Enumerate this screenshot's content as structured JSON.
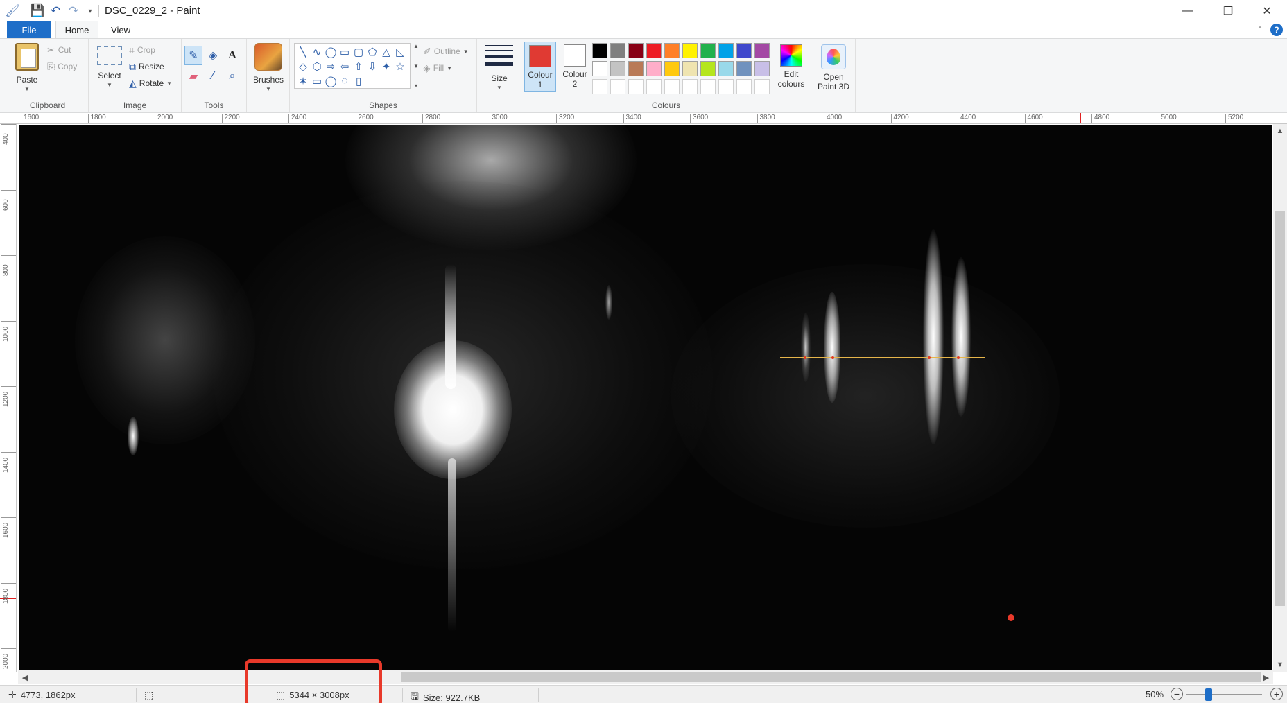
{
  "window": {
    "title": "DSC_0229_2 - Paint",
    "minimize_glyph": "—",
    "restore_glyph": "❐",
    "close_glyph": "✕"
  },
  "quick_access": {
    "app_icon": "paint-app-icon",
    "save_icon": "save-icon",
    "undo_icon": "undo-icon",
    "redo_icon": "redo-icon",
    "customize_icon": "customize-caret-icon"
  },
  "menu_tabs": {
    "file": "File",
    "home": "Home",
    "view": "View"
  },
  "ribbon": {
    "clipboard": {
      "label": "Clipboard",
      "paste": "Paste",
      "cut": "Cut",
      "copy": "Copy"
    },
    "image": {
      "label": "Image",
      "select": "Select",
      "crop": "Crop",
      "resize": "Resize",
      "rotate": "Rotate"
    },
    "tools": {
      "label": "Tools"
    },
    "brushes": "Brushes",
    "shapes": {
      "label": "Shapes",
      "outline": "Outline",
      "fill": "Fill",
      "items": [
        "╲",
        "∿",
        "◯",
        "▭",
        "▢",
        "⬠",
        "△",
        "◺",
        "◇",
        "⬡",
        "⇨",
        "⇦",
        "⇧",
        "⇩",
        "✦",
        "☆",
        "✶",
        "▭",
        "◯",
        "◌",
        "▯"
      ]
    },
    "size": "Size",
    "colours": {
      "label": "Colours",
      "colour1_line1": "Colour",
      "colour1_line2": "1",
      "colour2_line1": "Colour",
      "colour2_line2": "2",
      "colour1_value": "#e03a33",
      "colour2_value": "#ffffff",
      "edit_line1": "Edit",
      "edit_line2": "colours",
      "palette_row1": [
        "#000000",
        "#7f7f7f",
        "#880015",
        "#ed1c24",
        "#ff7f27",
        "#fff200",
        "#22b14c",
        "#00a2e8",
        "#3f48cc",
        "#a349a4"
      ],
      "palette_row2": [
        "#ffffff",
        "#c3c3c3",
        "#b97a57",
        "#ffaec9",
        "#ffc90e",
        "#efe4b0",
        "#b5e61d",
        "#99d9ea",
        "#7092be",
        "#c8bfe7"
      ]
    },
    "paint3d_line1": "Open",
    "paint3d_line2": "Paint 3D"
  },
  "ruler": {
    "h_labels": [
      "1600",
      "1800",
      "2000",
      "2200",
      "2400",
      "2600",
      "2800",
      "3000",
      "3200",
      "3400",
      "3600",
      "3800",
      "4000",
      "4200",
      "4400",
      "4600",
      "4800",
      "5000",
      "5200"
    ],
    "v_labels": [
      "400",
      "600",
      "800",
      "1000",
      "1200",
      "1400",
      "1600",
      "1800",
      "2000"
    ]
  },
  "status": {
    "cursor_position": "4773, 1862px",
    "image_dimensions": "5344 × 3008px",
    "file_size": "Size: 922.7KB",
    "zoom": "50%",
    "zoom_out": "−",
    "zoom_in": "+"
  },
  "accent_colors": {
    "file_tab": "#1e6ec8",
    "annotation_red": "#e8392a",
    "measure_line": "#e6b54a"
  }
}
